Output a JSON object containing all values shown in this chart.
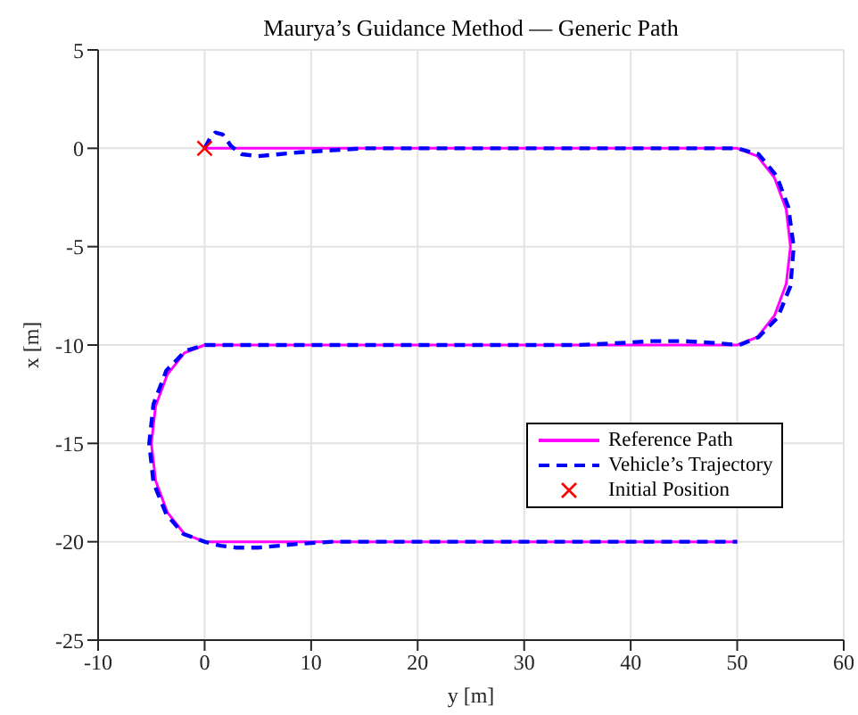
{
  "chart_data": {
    "type": "line",
    "title": "Maurya’s Guidance Method — Generic Path",
    "xlabel": "y [m]",
    "ylabel": "x [m]",
    "xlim": [
      -10,
      60
    ],
    "ylim": [
      -25,
      5
    ],
    "xticks": [
      -10,
      0,
      10,
      20,
      30,
      40,
      50,
      60
    ],
    "yticks": [
      -25,
      -20,
      -15,
      -10,
      -5,
      0,
      5
    ],
    "grid": true,
    "legend": "bottom right",
    "marker": "none",
    "series": [
      {
        "name": "Reference Path",
        "color": "#ff00ff",
        "line_style": "solid",
        "x": [
          0,
          50,
          51.9,
          53.5,
          54.6,
          55,
          54.6,
          53.5,
          51.9,
          50,
          0,
          -1.9,
          -3.5,
          -4.6,
          -5,
          -4.6,
          -3.5,
          -1.9,
          0,
          50
        ],
        "values": [
          0,
          0,
          -0.4,
          -1.5,
          -3.1,
          -5,
          -6.9,
          -8.5,
          -9.6,
          -10,
          -10,
          -10.4,
          -11.5,
          -13.1,
          -15,
          -16.9,
          -18.5,
          -19.6,
          -20,
          -20
        ]
      },
      {
        "name": "Vehicle’s Trajectory",
        "color": "#0000ff",
        "line_style": "dashed",
        "x": [
          0,
          0.5,
          1,
          1.7,
          2.5,
          3.5,
          5,
          7,
          9,
          12,
          15,
          20,
          30,
          40,
          50,
          52,
          53.7,
          54.8,
          55.3,
          55,
          53.8,
          52,
          50.2,
          48,
          45,
          42,
          39,
          35,
          20,
          0,
          -1.8,
          -3.6,
          -4.8,
          -5.2,
          -4.8,
          -3.6,
          -2,
          0,
          1.5,
          3,
          5,
          7,
          9,
          12,
          20,
          50
        ],
        "values": [
          0,
          0.5,
          0.8,
          0.7,
          0.1,
          -0.3,
          -0.4,
          -0.3,
          -0.2,
          -0.1,
          0,
          0,
          0,
          0,
          0,
          -0.3,
          -1.4,
          -3,
          -5,
          -7,
          -8.6,
          -9.6,
          -10,
          -9.9,
          -9.8,
          -9.8,
          -9.9,
          -10,
          -10,
          -10,
          -10.3,
          -11.3,
          -13,
          -15,
          -17,
          -18.6,
          -19.6,
          -20,
          -20.2,
          -20.3,
          -20.3,
          -20.2,
          -20.1,
          -20,
          -20,
          -20
        ]
      },
      {
        "name": "Initial Position",
        "type": "scatter",
        "marker": "cross",
        "color": "#ff0000",
        "x": [
          0
        ],
        "values": [
          0
        ]
      }
    ]
  }
}
